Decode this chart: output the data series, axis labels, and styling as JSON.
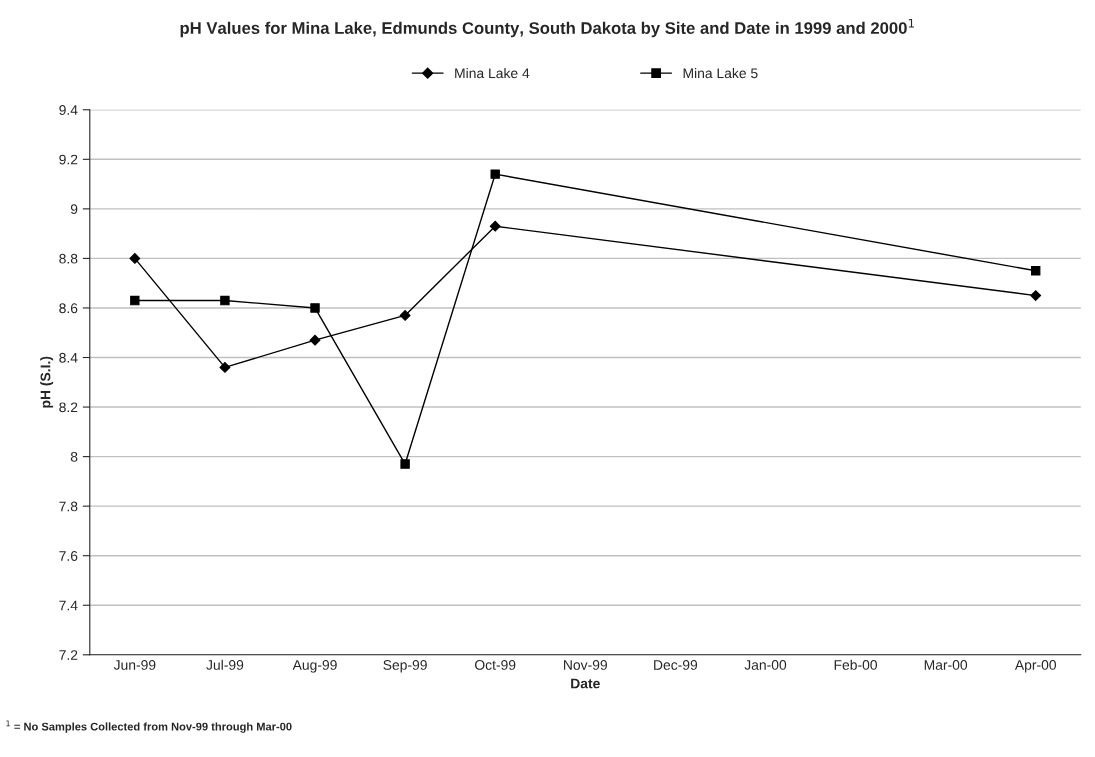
{
  "chart_data": {
    "type": "line",
    "title": "pH Values for Mina Lake, Edmunds County, South Dakota by Site and Date in 1999 and 2000$^{1}$",
    "xlabel": "Date",
    "ylabel": "pH (S.I.)",
    "categories": [
      "Jun-99",
      "Jul-99",
      "Aug-99",
      "Sep-99",
      "Oct-99",
      "Nov-99",
      "Dec-99",
      "Jan-00",
      "Feb-00",
      "Mar-00",
      "Apr-00"
    ],
    "series": [
      {
        "name": "Mina Lake 4",
        "color": "#000000",
        "marker": "diamond",
        "values": [
          8.8,
          8.36,
          8.47,
          8.57,
          8.93,
          null,
          null,
          null,
          null,
          null,
          8.65
        ]
      },
      {
        "name": "Mina Lake 5",
        "color": "#000000",
        "marker": "square",
        "values": [
          8.63,
          8.63,
          8.6,
          7.97,
          9.14,
          null,
          null,
          null,
          null,
          null,
          8.75
        ]
      }
    ],
    "ylim": [
      7.2,
      9.4
    ],
    "yticks": [
      7.2,
      7.4,
      7.6,
      7.8,
      8,
      8.2,
      8.4,
      8.6,
      8.8,
      9,
      9.2,
      9.4
    ],
    "grid": "y",
    "legend": "top",
    "line_style": "solid",
    "annotations": [
      "$^{1}$ = No Samples Collected from Nov-99 through Mar-00"
    ]
  }
}
